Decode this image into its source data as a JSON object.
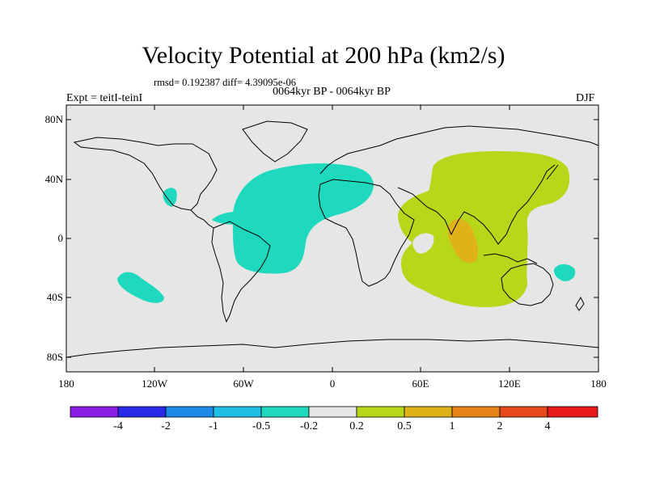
{
  "title": "Velocity Potential at 200 hPa (km2/s)",
  "stats": "rmsd= 0.192387 diff= 4.39095e-06",
  "period": "0064kyr BP - 0064kyr BP",
  "experiment": "Expt = teitI-teinI",
  "season": "DJF",
  "y_ticks": [
    "80N",
    "40N",
    "0",
    "40S",
    "80S"
  ],
  "x_ticks": [
    "180",
    "120W",
    "60W",
    "0",
    "60E",
    "120E",
    "180"
  ],
  "colorbar": {
    "colors": [
      "#8a1fe6",
      "#2a2ae6",
      "#1c8ae6",
      "#1fbfe6",
      "#1fd9bf",
      "#e6e6e6",
      "#b8d71a",
      "#e0b21a",
      "#e6841a",
      "#e64a1a",
      "#e61a1a"
    ],
    "labels": [
      "-4",
      "-2",
      "-1",
      "-0.5",
      "-0.2",
      "0.2",
      "0.5",
      "1",
      "2",
      "4"
    ]
  },
  "regions": [
    {
      "name": "atlantic-negative-anomaly",
      "level": "-0.5 to -0.2",
      "color": "#1fd9bf"
    },
    {
      "name": "pacific-negative-anomaly",
      "level": "-0.5 to -0.2",
      "color": "#1fd9bf"
    },
    {
      "name": "australia-negative-anomaly",
      "level": "-0.5 to -0.2",
      "color": "#1fd9bf"
    },
    {
      "name": "indo-pacific-positive-anomaly",
      "level": "0.2 to 0.5",
      "color": "#b8d71a"
    },
    {
      "name": "indian-ocean-positive-core",
      "level": "0.5 to 1",
      "color": "#e0b21a"
    }
  ]
}
